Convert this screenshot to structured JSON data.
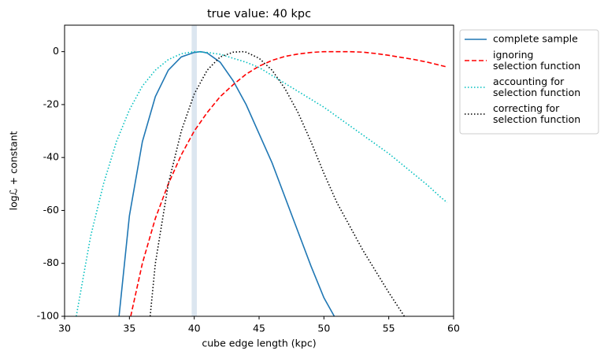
{
  "chart_data": {
    "type": "line",
    "title": "true value: 40 kpc",
    "xlabel": "cube edge length (kpc)",
    "ylabel": "logℒ + constant",
    "xlim": [
      30,
      60
    ],
    "ylim": [
      -100,
      10
    ],
    "xticks": [
      30,
      35,
      40,
      45,
      50,
      55,
      60
    ],
    "yticks": [
      -100,
      -80,
      -60,
      -40,
      -20,
      0
    ],
    "band": [
      39.8,
      40.2
    ],
    "band_color": "#dce6f0",
    "legend": "outside upper right",
    "series": [
      {
        "name": "complete sample",
        "color": "#1f77b4",
        "dash": "solid",
        "x": [
          34.2,
          35,
          36,
          37,
          38,
          39,
          40,
          40.5,
          41,
          42,
          43,
          44,
          45,
          46,
          47,
          48,
          49,
          50,
          50.8
        ],
        "values": [
          -100,
          -62,
          -34,
          -17,
          -7,
          -2,
          -0.3,
          0,
          -0.5,
          -4,
          -11,
          -20,
          -31,
          -42,
          -55,
          -68,
          -81,
          -93,
          -100
        ]
      },
      {
        "name": "ignoring\nselection function",
        "color": "#ff0000",
        "dash": "dashed",
        "x": [
          35.1,
          36,
          37,
          38,
          39,
          40,
          41,
          42,
          43,
          44,
          45,
          46,
          47,
          48,
          49,
          50,
          51,
          52,
          53,
          54,
          55,
          56,
          57,
          58,
          59,
          59.5
        ],
        "values": [
          -100,
          -80,
          -63,
          -50,
          -39,
          -30,
          -23,
          -17,
          -12.5,
          -8.5,
          -5.5,
          -3.3,
          -1.8,
          -0.9,
          -0.3,
          0,
          0,
          0,
          -0.2,
          -0.7,
          -1.4,
          -2.2,
          -3,
          -4,
          -5.2,
          -5.8
        ]
      },
      {
        "name": "accounting for\nselection function",
        "color": "#00bfbf",
        "dash": "dotted",
        "x": [
          30.9,
          32,
          33,
          34,
          35,
          36,
          37,
          38,
          39,
          40,
          41,
          42,
          43,
          44,
          45,
          46,
          47,
          48,
          49,
          50,
          51,
          52,
          53,
          54,
          55,
          56,
          57,
          58,
          59,
          59.5
        ],
        "values": [
          -100,
          -70,
          -50,
          -34,
          -22,
          -13,
          -7,
          -3,
          -0.8,
          0,
          -0.3,
          -1,
          -2.5,
          -4,
          -6,
          -9,
          -12,
          -15,
          -18,
          -21,
          -24.5,
          -28,
          -31.5,
          -35,
          -38.5,
          -42.5,
          -46.5,
          -50.5,
          -55,
          -57
        ]
      },
      {
        "name": "correcting for\nselection function",
        "color": "#000000",
        "dash": "dotted",
        "x": [
          36.6,
          37,
          38,
          39,
          40,
          41,
          42,
          43,
          43.7,
          44,
          45,
          46,
          47,
          48,
          49,
          50,
          51,
          52,
          53,
          54,
          55,
          56.2
        ],
        "values": [
          -100,
          -80,
          -50,
          -30,
          -16,
          -7,
          -2,
          -0.2,
          0,
          -0.2,
          -2.5,
          -7,
          -14,
          -23,
          -34,
          -46,
          -57,
          -66,
          -75,
          -83,
          -91,
          -100
        ]
      }
    ]
  }
}
